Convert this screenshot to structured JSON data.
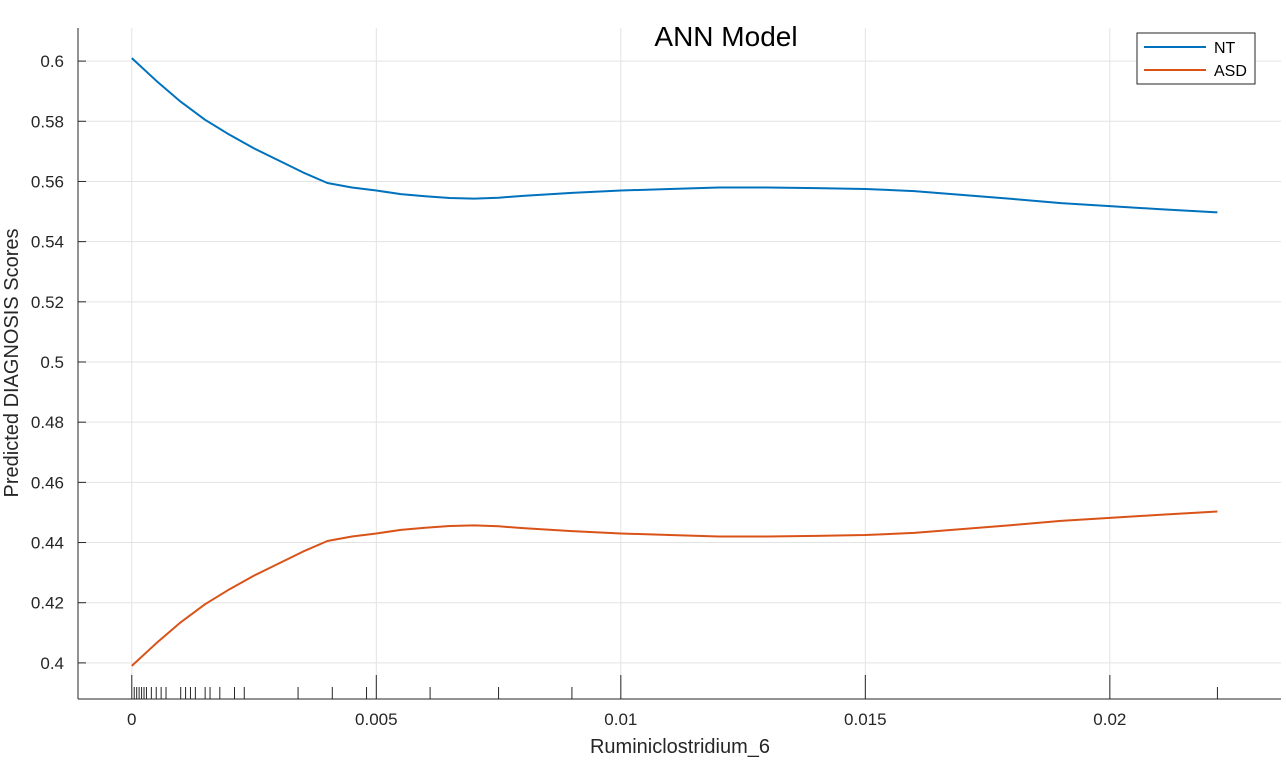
{
  "chart_data": {
    "type": "line",
    "title": "ANN Model",
    "xlabel": "Ruminiclostridium_6",
    "ylabel": "Predicted DIAGNOSIS Scores",
    "xlim": [
      -0.0011,
      0.0235
    ],
    "ylim": [
      0.388,
      0.611
    ],
    "x_ticks": [
      0,
      0.005,
      0.01,
      0.015,
      0.02
    ],
    "x_tick_labels": [
      "0",
      "0.005",
      "0.01",
      "0.015",
      "0.02"
    ],
    "y_ticks": [
      0.4,
      0.42,
      0.44,
      0.46,
      0.48,
      0.5,
      0.52,
      0.54,
      0.56,
      0.58,
      0.6
    ],
    "y_tick_labels": [
      "0.4",
      "0.42",
      "0.44",
      "0.46",
      "0.48",
      "0.5",
      "0.52",
      "0.54",
      "0.56",
      "0.58",
      "0.6"
    ],
    "grid": true,
    "legend_position": "top-right",
    "series": [
      {
        "name": "NT",
        "color": "#0072BD",
        "x": [
          0,
          0.0005,
          0.001,
          0.0015,
          0.002,
          0.0025,
          0.003,
          0.0035,
          0.004,
          0.0045,
          0.005,
          0.0055,
          0.006,
          0.0065,
          0.007,
          0.0075,
          0.008,
          0.009,
          0.01,
          0.011,
          0.012,
          0.013,
          0.014,
          0.015,
          0.016,
          0.017,
          0.018,
          0.019,
          0.02,
          0.021,
          0.0222
        ],
        "y": [
          0.601,
          0.5935,
          0.5865,
          0.5805,
          0.5755,
          0.571,
          0.567,
          0.563,
          0.5595,
          0.558,
          0.557,
          0.5558,
          0.5551,
          0.5545,
          0.5543,
          0.5546,
          0.5552,
          0.5562,
          0.557,
          0.5575,
          0.558,
          0.558,
          0.5578,
          0.5575,
          0.5568,
          0.5555,
          0.5542,
          0.5528,
          0.5518,
          0.5508,
          0.5497
        ]
      },
      {
        "name": "ASD",
        "color": "#D95319",
        "x": [
          0,
          0.0005,
          0.001,
          0.0015,
          0.002,
          0.0025,
          0.003,
          0.0035,
          0.004,
          0.0045,
          0.005,
          0.0055,
          0.006,
          0.0065,
          0.007,
          0.0075,
          0.008,
          0.009,
          0.01,
          0.011,
          0.012,
          0.013,
          0.014,
          0.015,
          0.016,
          0.017,
          0.018,
          0.019,
          0.02,
          0.021,
          0.0222
        ],
        "y": [
          0.399,
          0.4065,
          0.4135,
          0.4195,
          0.4245,
          0.429,
          0.433,
          0.437,
          0.4405,
          0.442,
          0.443,
          0.4442,
          0.4449,
          0.4455,
          0.4457,
          0.4454,
          0.4448,
          0.4438,
          0.443,
          0.4425,
          0.442,
          0.442,
          0.4422,
          0.4425,
          0.4432,
          0.4445,
          0.4458,
          0.4472,
          0.4482,
          0.4492,
          0.4503
        ]
      }
    ],
    "rug_x": [
      5e-05,
      0.0001,
      0.00015,
      0.0002,
      0.00025,
      0.0003,
      0.0004,
      0.0005,
      0.0006,
      0.0007,
      0.001,
      0.0011,
      0.0012,
      0.0013,
      0.0015,
      0.0016,
      0.0018,
      0.0021,
      0.0023,
      0.0034,
      0.0041,
      0.0048,
      0.0061,
      0.0075,
      0.009,
      0.0222
    ]
  }
}
